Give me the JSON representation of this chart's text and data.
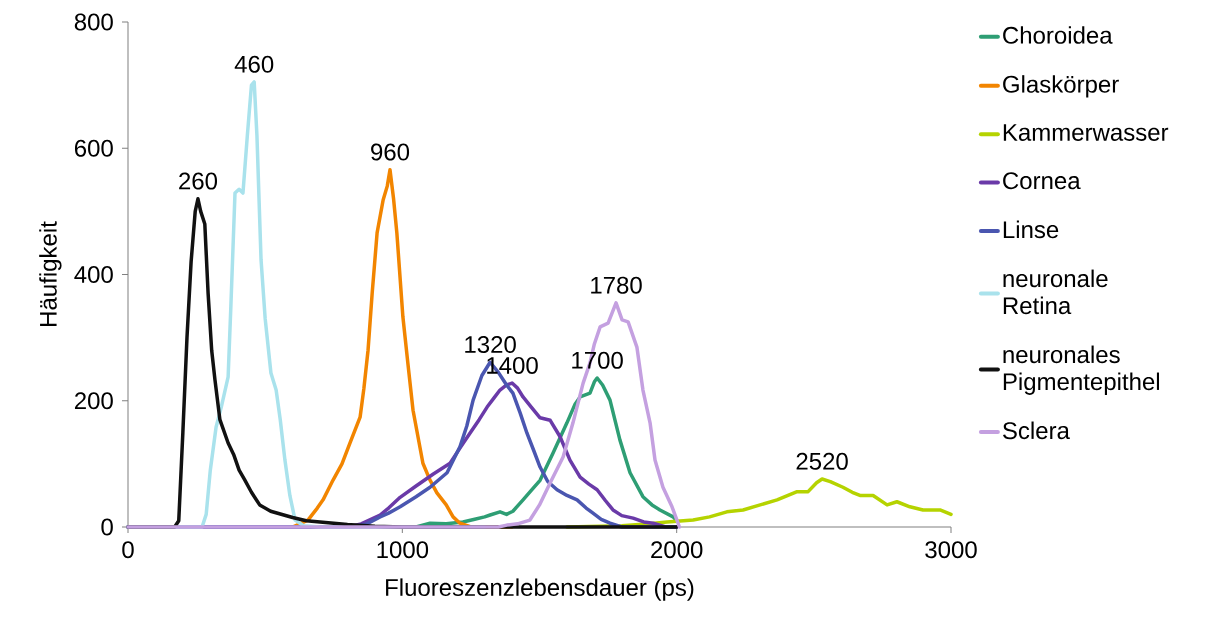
{
  "chart_data": {
    "type": "line",
    "xlabel": "Fluoreszenzlebensdauer (ps)",
    "ylabel": "Häufigkeit",
    "xlim": [
      0,
      3000
    ],
    "ylim": [
      0,
      800
    ],
    "xticks": [
      0,
      1000,
      2000,
      3000
    ],
    "yticks": [
      0,
      200,
      400,
      600,
      800
    ],
    "legend": "right",
    "series": [
      {
        "name": "Choroidea",
        "color": "#2e9e74",
        "x": [
          0,
          1050,
          1101,
          1160,
          1221,
          1260,
          1300,
          1320,
          1356,
          1380,
          1403,
          1440,
          1470,
          1502,
          1549,
          1600,
          1630,
          1648,
          1684,
          1700,
          1710,
          1730,
          1757,
          1793,
          1830,
          1877,
          1910,
          1939,
          1987,
          2000
        ],
        "values": [
          0,
          0,
          6,
          5,
          8,
          12,
          16,
          19,
          24,
          20,
          25,
          43,
          58,
          74,
          117,
          165,
          195,
          206,
          212,
          230,
          236,
          225,
          201,
          138,
          86,
          48,
          35,
          27,
          16,
          10
        ]
      },
      {
        "name": "Glaskörper",
        "color": "#f28500",
        "x": [
          600,
          656,
          690,
          711,
          747,
          780,
          809,
          846,
          860,
          875,
          890,
          908,
          930,
          945,
          955,
          968,
          980,
          1002,
          1020,
          1039,
          1075,
          1100,
          1126,
          1160,
          1185,
          1210,
          1250,
          1400
        ],
        "values": [
          0,
          11,
          30,
          43,
          74,
          100,
          133,
          174,
          220,
          280,
          370,
          466,
          518,
          540,
          566,
          520,
          466,
          333,
          260,
          185,
          101,
          75,
          54,
          35,
          16,
          6,
          0,
          0
        ]
      },
      {
        "name": "Kammerwasser",
        "color": "#b5d300",
        "x": [
          1600,
          1800,
          1900,
          1965,
          2060,
          2120,
          2183,
          2242,
          2304,
          2366,
          2439,
          2479,
          2510,
          2530,
          2560,
          2606,
          2640,
          2668,
          2716,
          2767,
          2803,
          2850,
          2898,
          2960,
          3000
        ],
        "values": [
          0,
          2,
          5,
          8,
          11,
          16,
          24,
          27,
          35,
          43,
          56,
          56,
          70,
          76,
          72,
          63,
          55,
          50,
          50,
          35,
          40,
          32,
          27,
          27,
          20
        ]
      },
      {
        "name": "Cornea",
        "color": "#6a3aa8",
        "x": [
          0,
          800,
          850,
          919,
          950,
          992,
          1050,
          1113,
          1174,
          1210,
          1247,
          1280,
          1309,
          1335,
          1356,
          1380,
          1400,
          1420,
          1440,
          1470,
          1502,
          1539,
          1575,
          1611,
          1648,
          1680,
          1710,
          1740,
          1768,
          1800,
          1841,
          1880,
          1914,
          1960,
          2000
        ],
        "values": [
          0,
          0,
          5,
          19,
          30,
          47,
          65,
          84,
          101,
          125,
          149,
          170,
          190,
          205,
          217,
          225,
          228,
          220,
          206,
          190,
          173,
          169,
          143,
          106,
          79,
          68,
          59,
          42,
          27,
          18,
          14,
          8,
          6,
          0,
          0
        ]
      },
      {
        "name": "Linse",
        "color": "#4a56b0",
        "x": [
          0,
          820,
          870,
          919,
          950,
          992,
          1050,
          1101,
          1163,
          1210,
          1235,
          1258,
          1290,
          1320,
          1350,
          1380,
          1403,
          1430,
          1454,
          1480,
          1502,
          1530,
          1564,
          1600,
          1637,
          1670,
          1695,
          1725,
          1757,
          1800,
          2000
        ],
        "values": [
          0,
          0,
          5,
          16,
          22,
          32,
          48,
          63,
          86,
          127,
          160,
          201,
          240,
          261,
          245,
          225,
          212,
          180,
          149,
          120,
          95,
          72,
          59,
          50,
          43,
          30,
          22,
          12,
          6,
          0,
          0
        ]
      },
      {
        "name": "neuronale Retina",
        "color": "#a9e2ec",
        "x": [
          0,
          270,
          285,
          300,
          321,
          340,
          365,
          375,
          390,
          405,
          419,
          435,
          450,
          460,
          470,
          485,
          500,
          521,
          540,
          555,
          572,
          590,
          609,
          640,
          700,
          1300
        ],
        "values": [
          0,
          0,
          20,
          90,
          158,
          190,
          238,
          350,
          529,
          535,
          529,
          620,
          700,
          705,
          620,
          423,
          330,
          244,
          217,
          170,
          106,
          50,
          11,
          2,
          0,
          0
        ]
      },
      {
        "name": "neuronales Pigmentepithel",
        "color": "#111111",
        "x": [
          0,
          170,
          185,
          200,
          215,
          230,
          245,
          255,
          265,
          280,
          292,
          305,
          317,
          335,
          365,
          385,
          405,
          425,
          450,
          480,
          520,
          560,
          600,
          650,
          700,
          800,
          900,
          1000,
          2000
        ],
        "values": [
          0,
          0,
          10,
          150,
          300,
          420,
          500,
          520,
          500,
          480,
          370,
          280,
          233,
          170,
          133,
          115,
          90,
          75,
          55,
          35,
          25,
          20,
          15,
          10,
          8,
          4,
          1,
          0,
          0
        ]
      },
      {
        "name": "Sclera",
        "color": "#c4a0e0",
        "x": [
          0,
          1350,
          1381,
          1420,
          1465,
          1500,
          1539,
          1586,
          1622,
          1659,
          1684,
          1700,
          1721,
          1750,
          1779,
          1801,
          1823,
          1855,
          1877,
          1903,
          1921,
          1950,
          1983,
          2001,
          2010
        ],
        "values": [
          0,
          0,
          3,
          5,
          11,
          35,
          70,
          111,
          165,
          228,
          260,
          290,
          317,
          323,
          355,
          328,
          325,
          285,
          217,
          165,
          106,
          63,
          32,
          11,
          0
        ]
      }
    ],
    "annotations": [
      {
        "text": "260",
        "x": 255,
        "y": 520
      },
      {
        "text": "460",
        "x": 460,
        "y": 705
      },
      {
        "text": "960",
        "x": 955,
        "y": 566
      },
      {
        "text": "1320",
        "x": 1320,
        "y": 261
      },
      {
        "text": "1400",
        "x": 1400,
        "y": 228
      },
      {
        "text": "1700",
        "x": 1710,
        "y": 236
      },
      {
        "text": "1780",
        "x": 1779,
        "y": 355
      },
      {
        "text": "2520",
        "x": 2530,
        "y": 76
      }
    ]
  }
}
